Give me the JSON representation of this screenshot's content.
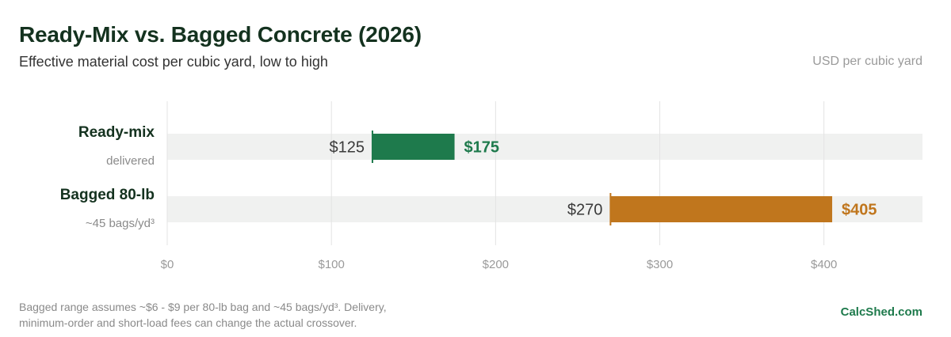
{
  "header": {
    "title": "Ready-Mix vs. Bagged Concrete (2026)",
    "subtitle": "Effective material cost per cubic yard, low to high",
    "units": "USD per cubic yard"
  },
  "chart_data": {
    "type": "bar",
    "orientation": "horizontal-range",
    "categories": [
      "Ready-mix",
      "Bagged 80-lb"
    ],
    "category_sublabels": [
      "delivered",
      "~45 bags/yd³"
    ],
    "series": [
      {
        "values": [
          {
            "low": 125,
            "high": 175,
            "low_label": "$125",
            "high_label": "$175"
          },
          {
            "low": 270,
            "high": 405,
            "low_label": "$270",
            "high_label": "$405"
          }
        ]
      }
    ],
    "colors": [
      "#1e7a4c",
      "#c0761d"
    ],
    "track_color": "#f0f1f0",
    "xlim": [
      0,
      460
    ],
    "x_ticks": [
      0,
      100,
      200,
      300,
      400
    ],
    "x_tick_labels": [
      "$0",
      "$100",
      "$200",
      "$300",
      "$400"
    ],
    "grid": true
  },
  "footer": {
    "note_line1": "Bagged range assumes ~$6 - $9 per 80-lb bag and ~45 bags/yd³. Delivery,",
    "note_line2": "minimum-order and short-load fees can change the actual crossover.",
    "brand": "CalcShed.com"
  }
}
